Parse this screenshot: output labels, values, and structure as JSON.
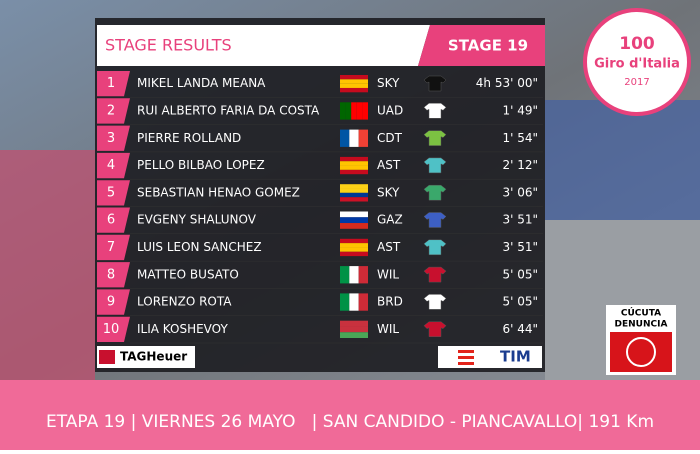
{
  "header": {
    "title": "STAGE RESULTS",
    "stage": "STAGE 19"
  },
  "logo": {
    "anniversary": "100",
    "name": "Giro d'Italia",
    "year": "2017"
  },
  "table": {
    "rows": [
      [
        1,
        "MIKEL LANDA MEANA",
        "SKY",
        "4h 53' 00\""
      ],
      [
        2,
        "RUI ALBERTO FARIA DA COSTA",
        "UAD",
        "1' 49\""
      ],
      [
        3,
        "PIERRE ROLLAND",
        "CDT",
        "1' 54\""
      ],
      [
        4,
        "PELLO BILBAO LOPEZ",
        "AST",
        "2' 12\""
      ],
      [
        5,
        "SEBASTIAN HENAO GOMEZ",
        "SKY",
        "3' 06\""
      ],
      [
        6,
        "EVGENY SHALUNOV",
        "GAZ",
        "3' 51\""
      ],
      [
        7,
        "LUIS LEON SANCHEZ",
        "AST",
        "3' 51\""
      ],
      [
        8,
        "MATTEO BUSATO",
        "WIL",
        "5' 05\""
      ],
      [
        9,
        "LORENZO ROTA",
        "BRD",
        "5' 05\""
      ],
      [
        10,
        "ILIA KOSHEVOY",
        "WIL",
        "6' 44\""
      ]
    ]
  },
  "sponsors": {
    "left": "TAGHeuer",
    "right": "TIM"
  },
  "badge": {
    "line1": "CÚCUTA",
    "line2": "DENUNCIA"
  },
  "footer": {
    "text": "ETAPA 19 | VIERNES 26 MAYO   | SAN CANDIDO - PIANCAVALLO| 191 Km"
  }
}
